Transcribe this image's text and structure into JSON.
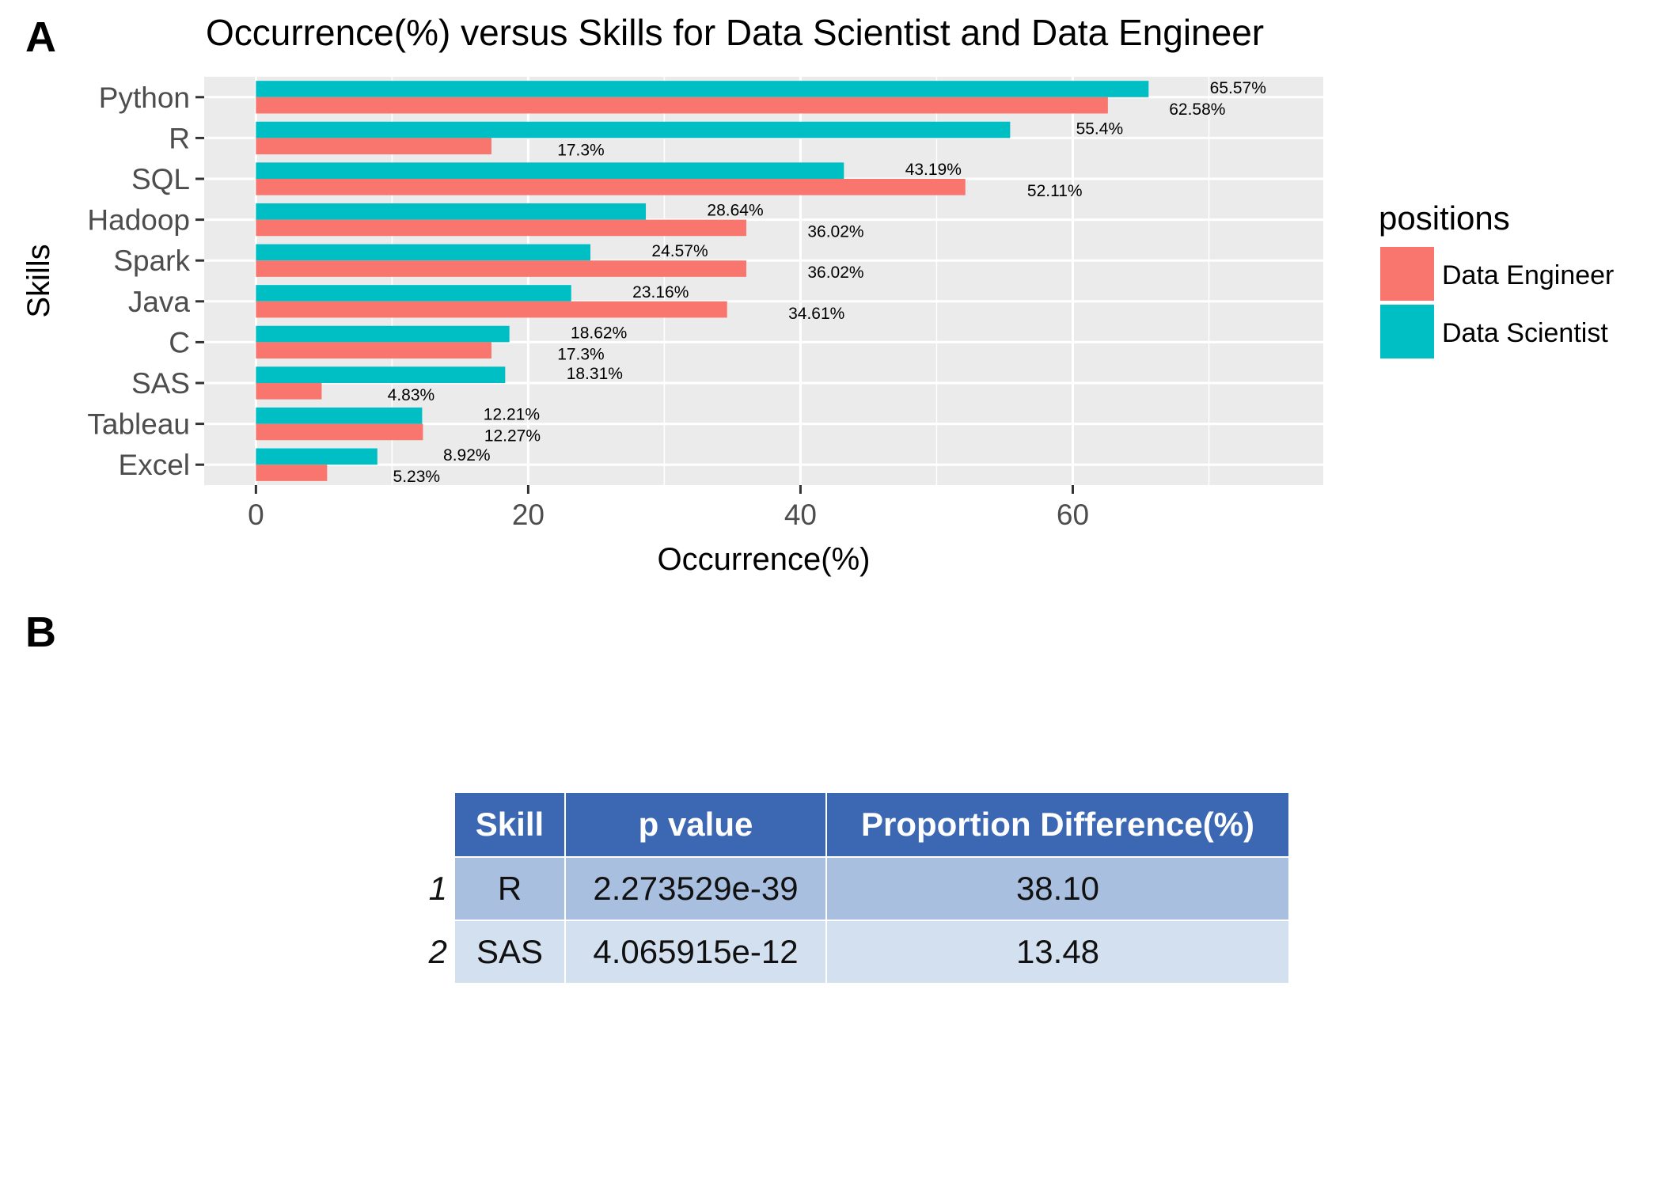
{
  "panels": {
    "a": "A",
    "b": "B"
  },
  "chart_data": {
    "type": "bar",
    "orientation": "horizontal",
    "title": "Occurrence(%) versus Skills for Data Scientist and Data Engineer",
    "xlabel": "Occurrence(%)",
    "ylabel": "Skills",
    "xlim": [
      -3.8,
      78.4
    ],
    "xticks": [
      0,
      20,
      40,
      60
    ],
    "grid": true,
    "legend_title": "positions",
    "legend_position": "right",
    "categories": [
      "Python",
      "R",
      "SQL",
      "Hadoop",
      "Spark",
      "Java",
      "C",
      "SAS",
      "Tableau",
      "Excel"
    ],
    "series": [
      {
        "name": "Data Engineer",
        "color": "#f8766d",
        "values": [
          62.58,
          17.3,
          52.11,
          36.02,
          36.02,
          34.61,
          17.3,
          4.83,
          12.27,
          5.23
        ],
        "labels": [
          "62.58%",
          "17.3%",
          "52.11%",
          "36.02%",
          "36.02%",
          "34.61%",
          "17.3%",
          "4.83%",
          "12.27%",
          "5.23%"
        ]
      },
      {
        "name": "Data Scientist",
        "color": "#00bfc4",
        "values": [
          65.57,
          55.4,
          43.19,
          28.64,
          24.57,
          23.16,
          18.62,
          18.31,
          12.21,
          8.92
        ],
        "labels": [
          "65.57%",
          "55.4%",
          "43.19%",
          "28.64%",
          "24.57%",
          "23.16%",
          "18.62%",
          "18.31%",
          "12.21%",
          "8.92%"
        ]
      }
    ]
  },
  "table": {
    "headers": [
      "Skill",
      "p value",
      "Proportion Difference(%)"
    ],
    "rows": [
      {
        "index": "1",
        "skill": "R",
        "p_value": "2.273529e-39",
        "prop_diff": "38.10"
      },
      {
        "index": "2",
        "skill": "SAS",
        "p_value": "4.065915e-12",
        "prop_diff": "13.48"
      }
    ]
  }
}
